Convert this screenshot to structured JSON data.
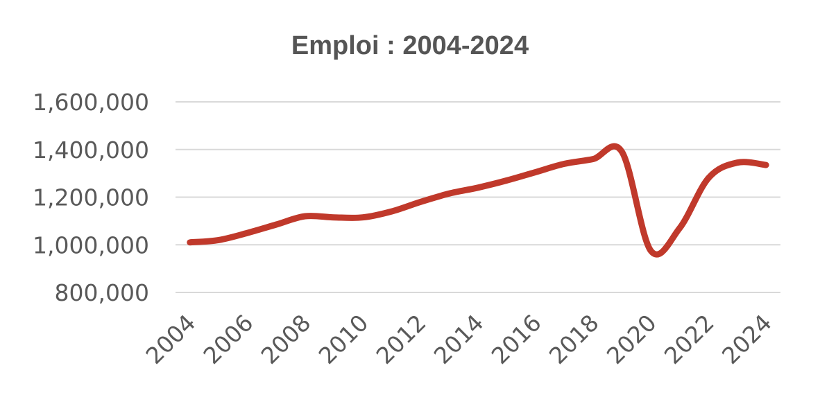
{
  "chart_data": {
    "type": "line",
    "title": "Emploi : 2004-2024",
    "xlabel": "",
    "ylabel": "",
    "x": [
      2004,
      2005,
      2006,
      2007,
      2008,
      2009,
      2010,
      2011,
      2012,
      2013,
      2014,
      2015,
      2016,
      2017,
      2018,
      2019,
      2020,
      2021,
      2022,
      2023,
      2024
    ],
    "x_tick_labels": [
      "2004",
      "2006",
      "2008",
      "2010",
      "2012",
      "2014",
      "2016",
      "2018",
      "2020",
      "2022",
      "2024"
    ],
    "y_tick_labels": [
      "800,000",
      "1,000,000",
      "1,200,000",
      "1,400,000",
      "1,600,000"
    ],
    "y_ticks": [
      800000,
      1000000,
      1200000,
      1400000,
      1600000
    ],
    "ylim": [
      800000,
      1600000
    ],
    "grid": true,
    "series": [
      {
        "color": "#c0392b",
        "values": [
          1010000,
          1020000,
          1050000,
          1085000,
          1120000,
          1115000,
          1115000,
          1140000,
          1180000,
          1215000,
          1240000,
          1270000,
          1305000,
          1340000,
          1360000,
          1390000,
          975000,
          1070000,
          1280000,
          1345000,
          1335000
        ]
      }
    ]
  }
}
